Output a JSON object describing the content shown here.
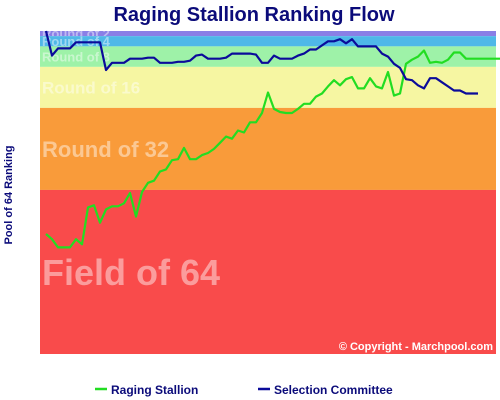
{
  "chart_data": {
    "type": "line",
    "title": "Raging Stallion Ranking Flow",
    "ylabel": "Pool of 64 Ranking",
    "y_direction": "inverted",
    "ylim": [
      1,
      64
    ],
    "bands": [
      {
        "label": "Round of 2",
        "from": 1,
        "to": 2,
        "color": "#8a7fe6"
      },
      {
        "label": "Round of 4",
        "from": 2,
        "to": 4,
        "color": "#4fb8e8"
      },
      {
        "label": "Round of 8",
        "from": 4,
        "to": 8,
        "color": "#9ef2a8"
      },
      {
        "label": "Round of 16",
        "from": 8,
        "to": 16,
        "color": "#f6f6a2"
      },
      {
        "label": "Round of 32",
        "from": 16,
        "to": 32,
        "color": "#f99b3a"
      },
      {
        "label": "Field of 64",
        "from": 32,
        "to": 64,
        "color": "#f94b4b"
      }
    ],
    "series": [
      {
        "name": "Raging Stallion",
        "color": "#22dd22",
        "values": [
          40.6,
          41.6,
          43.2,
          43.2,
          43.2,
          41.6,
          42.6,
          35.4,
          35,
          38.4,
          35.8,
          35.2,
          35.2,
          34.6,
          32.6,
          37.2,
          32.4,
          30.6,
          30.2,
          28.4,
          28,
          26.2,
          26,
          23.8,
          26,
          26,
          25.2,
          24.8,
          24,
          22.8,
          21.6,
          22,
          20.4,
          20.8,
          18.8,
          18.8,
          17,
          13,
          16.2,
          16.8,
          17,
          17,
          16.2,
          15.2,
          15.2,
          13.8,
          13.2,
          11.8,
          10.6,
          11.6,
          10.4,
          10,
          12.2,
          12.2,
          10.2,
          11.8,
          12.2,
          9,
          13.6,
          13.2,
          7.4,
          6.6,
          6,
          4.8,
          7.2,
          7,
          7.2,
          6.6,
          5.2,
          5.2,
          6.4,
          6.4,
          6.4,
          6.4,
          6.4,
          6.4,
          6.4,
          6.4
        ]
      },
      {
        "name": "Selection Committee",
        "color": "#0b0b9a",
        "values": [
          1,
          5.8,
          4.4,
          4.4,
          4.4,
          3.2,
          3.2,
          3.2,
          3.2,
          3.2,
          8.6,
          7.2,
          7.2,
          7.2,
          6.4,
          6.4,
          6.4,
          6.2,
          6.2,
          7.2,
          7.2,
          7.2,
          7,
          7,
          6.8,
          5.8,
          5.6,
          6.4,
          6.4,
          6.4,
          6.2,
          5.4,
          5.4,
          5.4,
          5.4,
          5.6,
          7.2,
          7.2,
          5.8,
          6.4,
          6.4,
          6.4,
          5.8,
          5.4,
          4.6,
          4.6,
          3.8,
          3,
          3,
          2.6,
          3.4,
          2.6,
          4,
          4,
          4,
          4,
          5.4,
          6,
          7.4,
          8.2,
          10.4,
          10.6,
          11.6,
          12.2,
          10.2,
          10.2,
          11,
          11.8,
          12.6,
          12.6,
          13.2,
          13.2,
          13.2
        ]
      }
    ],
    "annotation": "© Copyright - Marchpool.com",
    "legend": {
      "position": "bottom"
    }
  }
}
